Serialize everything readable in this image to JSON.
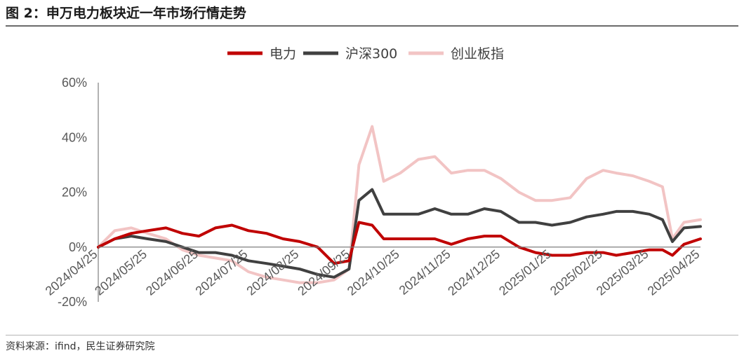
{
  "figure": {
    "title": "图 2：申万电力板块近一年市场行情走势",
    "source": "资料来源：ifind，民生证券研究院"
  },
  "chart_data": {
    "type": "line",
    "x_tick_labels": [
      "2024/04/25",
      "2024/05/25",
      "2024/06/25",
      "2024/07/25",
      "2024/08/25",
      "2024/09/25",
      "2024/10/25",
      "2024/11/25",
      "2024/12/25",
      "2025/01/25",
      "2025/02/25",
      "2025/03/25",
      "2025/04/25"
    ],
    "y_tick_labels": [
      "-20%",
      "0%",
      "20%",
      "40%",
      "60%"
    ],
    "ylim": [
      -20,
      60
    ],
    "y_unit": "%",
    "legend_position": "top-center",
    "grid": false,
    "x": [
      "2024/04/25",
      "2024/05/05",
      "2024/05/15",
      "2024/05/25",
      "2024/06/05",
      "2024/06/15",
      "2024/06/25",
      "2024/07/05",
      "2024/07/15",
      "2024/07/25",
      "2024/08/05",
      "2024/08/15",
      "2024/08/25",
      "2024/09/05",
      "2024/09/15",
      "2024/09/24",
      "2024/09/30",
      "2024/10/08",
      "2024/10/15",
      "2024/10/25",
      "2024/11/05",
      "2024/11/15",
      "2024/11/25",
      "2024/12/05",
      "2024/12/15",
      "2024/12/25",
      "2025/01/05",
      "2025/01/15",
      "2025/01/25",
      "2025/02/05",
      "2025/02/15",
      "2025/02/25",
      "2025/03/05",
      "2025/03/15",
      "2025/03/25",
      "2025/04/02",
      "2025/04/08",
      "2025/04/15",
      "2025/04/25"
    ],
    "series": [
      {
        "name": "电力",
        "color": "#c00000",
        "values": [
          0,
          3,
          5,
          6,
          7,
          5,
          4,
          7,
          8,
          6,
          5,
          3,
          2,
          0,
          -6,
          -5,
          9,
          8,
          3,
          3,
          3,
          3,
          1,
          3,
          4,
          4,
          0,
          -2,
          -3,
          -3,
          -2,
          -2,
          -3,
          -2,
          -1,
          -1,
          -3,
          1,
          3
        ]
      },
      {
        "name": "沪深300",
        "color": "#404040",
        "values": [
          0,
          3,
          4,
          3,
          2,
          0,
          -2,
          -2,
          -3,
          -5,
          -6,
          -7,
          -8,
          -10,
          -11,
          -8,
          17,
          21,
          12,
          12,
          12,
          14,
          12,
          12,
          14,
          13,
          9,
          9,
          8,
          9,
          11,
          12,
          13,
          13,
          12,
          10,
          2,
          7,
          7.5
        ]
      },
      {
        "name": "创业板指",
        "color": "#f2c4c4",
        "values": [
          0,
          6,
          7,
          5,
          3,
          -1,
          -3,
          -4,
          -5,
          -9,
          -11,
          -12,
          -13,
          -13,
          -12,
          -8,
          30,
          44,
          24,
          27,
          32,
          33,
          27,
          28,
          28,
          25,
          20,
          17,
          17,
          18,
          25,
          28,
          27,
          26,
          24,
          22,
          3,
          9,
          10
        ]
      }
    ]
  }
}
